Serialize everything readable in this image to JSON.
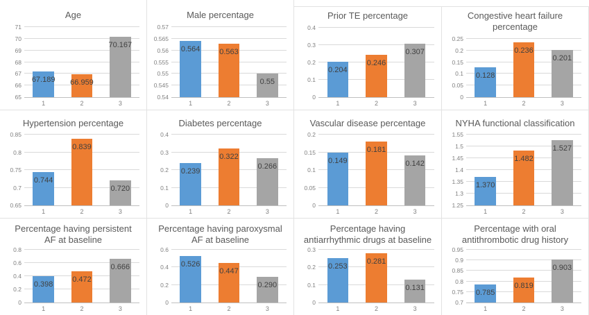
{
  "colors": {
    "series": [
      "#5B9BD5",
      "#ED7D31",
      "#A5A5A5"
    ],
    "gridline": "#D9D9D9",
    "axis_line": "#BFBFBF",
    "title_text": "#595959",
    "tick_text": "#808080",
    "bar_label_text": "#404040",
    "panel_border": "#E2E2E2"
  },
  "chart_data": [
    {
      "type": "bar",
      "title": "Age",
      "categories": [
        "1",
        "2",
        "3"
      ],
      "values": [
        67.189,
        66.959,
        70.167
      ],
      "labels": [
        "67.189",
        "66.959",
        "70.167"
      ],
      "ylim": [
        65,
        71
      ],
      "yticks": [
        "65",
        "66",
        "67",
        "68",
        "69",
        "70",
        "71"
      ],
      "grid": true,
      "legend": "none"
    },
    {
      "type": "bar",
      "title": "Male percentage",
      "categories": [
        "1",
        "2",
        "3"
      ],
      "values": [
        0.564,
        0.563,
        0.55
      ],
      "labels": [
        "0.564",
        "0.563",
        "0.55"
      ],
      "ylim": [
        0.54,
        0.57
      ],
      "yticks": [
        "0.54",
        "0.545",
        "0.55",
        "0.555",
        "0.56",
        "0.565",
        "0.57"
      ],
      "grid": true,
      "legend": "none"
    },
    {
      "type": "bar",
      "title": "Prior TE percentage",
      "categories": [
        "1",
        "2",
        "3"
      ],
      "values": [
        0.204,
        0.246,
        0.307
      ],
      "labels": [
        "0.204",
        "0.246",
        "0.307"
      ],
      "ylim": [
        0,
        0.4
      ],
      "yticks": [
        "0",
        "0.1",
        "0.2",
        "0.3",
        "0.4"
      ],
      "grid": true,
      "legend": "none"
    },
    {
      "type": "bar",
      "title": "Congestive heart failure percentage",
      "categories": [
        "1",
        "2",
        "3"
      ],
      "values": [
        0.128,
        0.236,
        0.201
      ],
      "labels": [
        "0.128",
        "0.236",
        "0.201"
      ],
      "ylim": [
        0,
        0.25
      ],
      "yticks": [
        "0",
        "0.05",
        "0.1",
        "0.15",
        "0.2",
        "0.25"
      ],
      "grid": true,
      "legend": "none"
    },
    {
      "type": "bar",
      "title": "Hypertension percentage",
      "categories": [
        "1",
        "2",
        "3"
      ],
      "values": [
        0.744,
        0.839,
        0.72
      ],
      "labels": [
        "0.744",
        "0.839",
        "0.720"
      ],
      "ylim": [
        0.65,
        0.85
      ],
      "yticks": [
        "0.65",
        "0.7",
        "0.75",
        "0.8",
        "0.85"
      ],
      "grid": true,
      "legend": "none"
    },
    {
      "type": "bar",
      "title": "Diabetes percentage",
      "categories": [
        "1",
        "2",
        "3"
      ],
      "values": [
        0.239,
        0.322,
        0.266
      ],
      "labels": [
        "0.239",
        "0.322",
        "0.266"
      ],
      "ylim": [
        0,
        0.4
      ],
      "yticks": [
        "0",
        "0.1",
        "0.2",
        "0.3",
        "0.4"
      ],
      "grid": true,
      "legend": "none"
    },
    {
      "type": "bar",
      "title": "Vascular disease percentage",
      "categories": [
        "1",
        "2",
        "3"
      ],
      "values": [
        0.149,
        0.181,
        0.142
      ],
      "labels": [
        "0.149",
        "0.181",
        "0.142"
      ],
      "ylim": [
        0,
        0.2
      ],
      "yticks": [
        "0",
        "0.05",
        "0.1",
        "0.15",
        "0.2"
      ],
      "grid": true,
      "legend": "none"
    },
    {
      "type": "bar",
      "title": "NYHA functional classification",
      "categories": [
        "1",
        "2",
        "3"
      ],
      "values": [
        1.37,
        1.482,
        1.527
      ],
      "labels": [
        "1.370",
        "1.482",
        "1.527"
      ],
      "ylim": [
        1.25,
        1.55
      ],
      "yticks": [
        "1.25",
        "1.3",
        "1.35",
        "1.4",
        "1.45",
        "1.5",
        "1.55"
      ],
      "grid": true,
      "legend": "none"
    },
    {
      "type": "bar",
      "title": "Percentage having persistent AF at baseline",
      "categories": [
        "1",
        "2",
        "3"
      ],
      "values": [
        0.398,
        0.472,
        0.666
      ],
      "labels": [
        "0.398",
        "0.472",
        "0.666"
      ],
      "ylim": [
        0,
        0.8
      ],
      "yticks": [
        "0",
        "0.2",
        "0.4",
        "0.6",
        "0.8"
      ],
      "grid": true,
      "legend": "none"
    },
    {
      "type": "bar",
      "title": "Percentage having paroxysmal AF at baseline",
      "categories": [
        "1",
        "2",
        "3"
      ],
      "values": [
        0.526,
        0.447,
        0.29
      ],
      "labels": [
        "0.526",
        "0.447",
        "0.290"
      ],
      "ylim": [
        0,
        0.6
      ],
      "yticks": [
        "0",
        "0.2",
        "0.4",
        "0.6"
      ],
      "grid": true,
      "legend": "none"
    },
    {
      "type": "bar",
      "title": "Percentage having antiarrhythmic drugs at baseline",
      "categories": [
        "1",
        "2",
        "3"
      ],
      "values": [
        0.253,
        0.281,
        0.131
      ],
      "labels": [
        "0.253",
        "0.281",
        "0.131"
      ],
      "ylim": [
        0,
        0.3
      ],
      "yticks": [
        "0",
        "0.1",
        "0.2",
        "0.3"
      ],
      "grid": true,
      "legend": "none"
    },
    {
      "type": "bar",
      "title": "Percentage with oral antithrombotic drug history",
      "categories": [
        "1",
        "2",
        "3"
      ],
      "values": [
        0.785,
        0.819,
        0.903
      ],
      "labels": [
        "0.785",
        "0.819",
        "0.903"
      ],
      "ylim": [
        0.7,
        0.95
      ],
      "yticks": [
        "0.7",
        "0.75",
        "0.8",
        "0.85",
        "0.9",
        "0.95"
      ],
      "grid": true,
      "legend": "none"
    }
  ]
}
